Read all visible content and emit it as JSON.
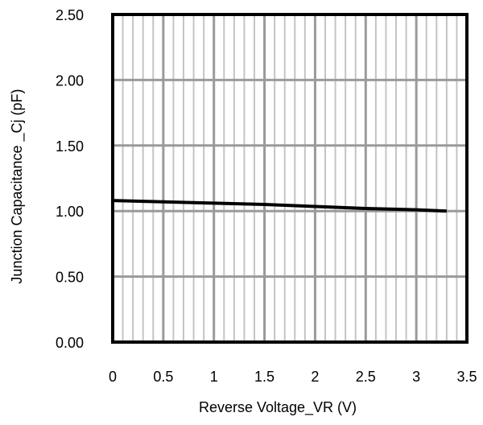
{
  "chart_data": {
    "type": "line",
    "title": "",
    "xlabel": "Reverse Voltage_VR (V)",
    "ylabel": "Junction Capacitance _Cj (pF)",
    "xlim": [
      0,
      3.5
    ],
    "ylim": [
      0,
      2.5
    ],
    "x_ticks": [
      "0",
      "0.5",
      "1",
      "1.5",
      "2",
      "2.5",
      "3",
      "3.5"
    ],
    "y_ticks": [
      "0.00",
      "0.50",
      "1.00",
      "1.50",
      "2.00",
      "2.50"
    ],
    "x_tick_values": [
      0,
      0.5,
      1,
      1.5,
      2,
      2.5,
      3,
      3.5
    ],
    "y_tick_values": [
      0,
      0.5,
      1.0,
      1.5,
      2.0,
      2.5
    ],
    "minor_x_step": 0.1,
    "grid": true,
    "legend": "none",
    "series": [
      {
        "x": [
          0,
          0.5,
          1,
          1.5,
          2,
          2.5,
          3,
          3.3
        ],
        "y": [
          1.08,
          1.07,
          1.06,
          1.05,
          1.035,
          1.02,
          1.01,
          1.0
        ]
      }
    ],
    "colors": {
      "line": "#000000",
      "major_grid": "#9a9a9a",
      "minor_grid": "#c4c4c4",
      "frame": "#000000"
    }
  }
}
